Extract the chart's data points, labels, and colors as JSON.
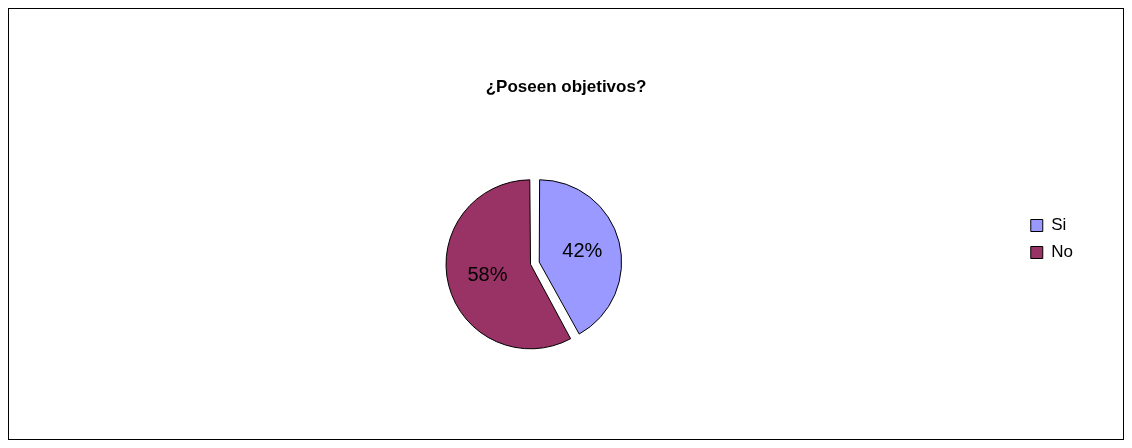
{
  "chart_data": {
    "type": "pie",
    "title": "¿Poseen objetivos?",
    "categories": [
      "Si",
      "No"
    ],
    "values": [
      42,
      58
    ],
    "colors": [
      "#9999ff",
      "#993366"
    ],
    "value_labels": [
      "42%",
      "58%"
    ],
    "legend": "right"
  }
}
